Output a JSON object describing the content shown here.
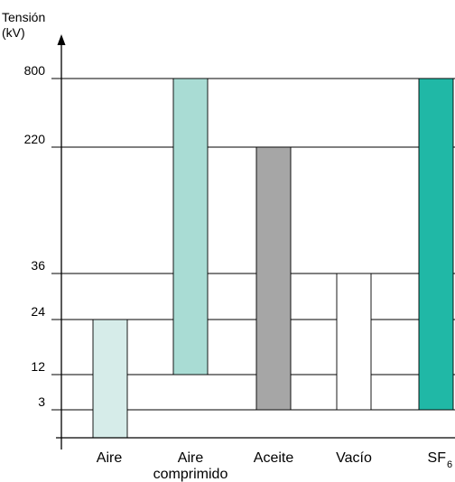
{
  "chart_data": {
    "type": "bar",
    "subtype": "floating-range",
    "ylabel_line1": "Tensión",
    "ylabel_line2": "(kV)",
    "y_ticks": [
      "800",
      "220",
      "36",
      "24",
      "12",
      "3"
    ],
    "y_scale": "ordinal-levels",
    "grid": true,
    "categories": [
      {
        "label": "Aire",
        "label_line2": "",
        "subscript": "",
        "low": "0",
        "high": "24",
        "color": "#d6ece9"
      },
      {
        "label": "Aire",
        "label_line2": "comprimido",
        "subscript": "",
        "low": "12",
        "high": "800",
        "color": "#a9dcd4"
      },
      {
        "label": "Aceite",
        "label_line2": "",
        "subscript": "",
        "low": "3",
        "high": "220",
        "color": "#a6a6a6"
      },
      {
        "label": "Vacío",
        "label_line2": "",
        "subscript": "",
        "low": "3",
        "high": "36",
        "color": "#ffffff"
      },
      {
        "label": "SF",
        "label_line2": "",
        "subscript": "6",
        "low": "3",
        "high": "800",
        "color": "#20b8a6"
      }
    ]
  }
}
